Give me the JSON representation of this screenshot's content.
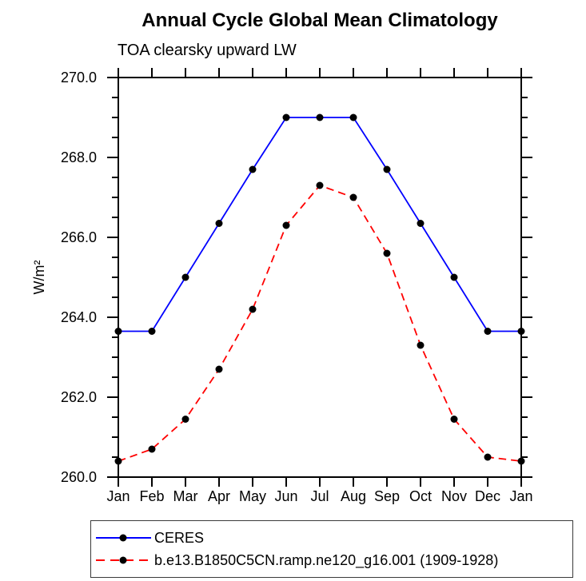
{
  "page": {
    "title": "Annual Cycle Global Mean Climatology",
    "subtitle": "TOA clearsky upward LW"
  },
  "legend": {
    "items": [
      {
        "label": "CERES"
      },
      {
        "label": "b.e13.B1850C5CN.ramp.ne120_g16.001 (1909-1928)"
      }
    ]
  },
  "chart_data": {
    "type": "line",
    "title": "Annual Cycle Global Mean Climatology",
    "subtitle": "TOA clearsky upward LW",
    "xlabel": "",
    "ylabel": "W/m²",
    "categories": [
      "Jan",
      "Feb",
      "Mar",
      "Apr",
      "May",
      "Jun",
      "Jul",
      "Aug",
      "Sep",
      "Oct",
      "Nov",
      "Dec",
      "Jan"
    ],
    "series": [
      {
        "name": "CERES",
        "color": "#0000ff",
        "line_style": "solid",
        "marker": "filled-circle",
        "marker_color": "#000000",
        "values": [
          263.65,
          263.65,
          265.0,
          266.35,
          267.7,
          269.0,
          269.0,
          269.0,
          267.7,
          266.35,
          265.0,
          263.65,
          263.65
        ]
      },
      {
        "name": "b.e13.B1850C5CN.ramp.ne120_g16.001 (1909-1928)",
        "color": "#ff0000",
        "line_style": "dashed",
        "marker": "filled-circle",
        "marker_color": "#000000",
        "values": [
          260.4,
          260.7,
          261.45,
          262.7,
          264.2,
          266.3,
          267.3,
          267.0,
          265.6,
          263.3,
          261.45,
          260.5,
          260.4
        ]
      }
    ],
    "ylim": [
      260.0,
      270.0
    ],
    "yticks": {
      "values": [
        260,
        262,
        264,
        266,
        268,
        270
      ],
      "labels": [
        "260.0",
        "262.0",
        "264.0",
        "266.0",
        "268.0",
        "270.0"
      ]
    },
    "yminor_step": 0.5,
    "grid": false,
    "axis_color": "#000000",
    "legend_position": "bottom-left-box"
  }
}
